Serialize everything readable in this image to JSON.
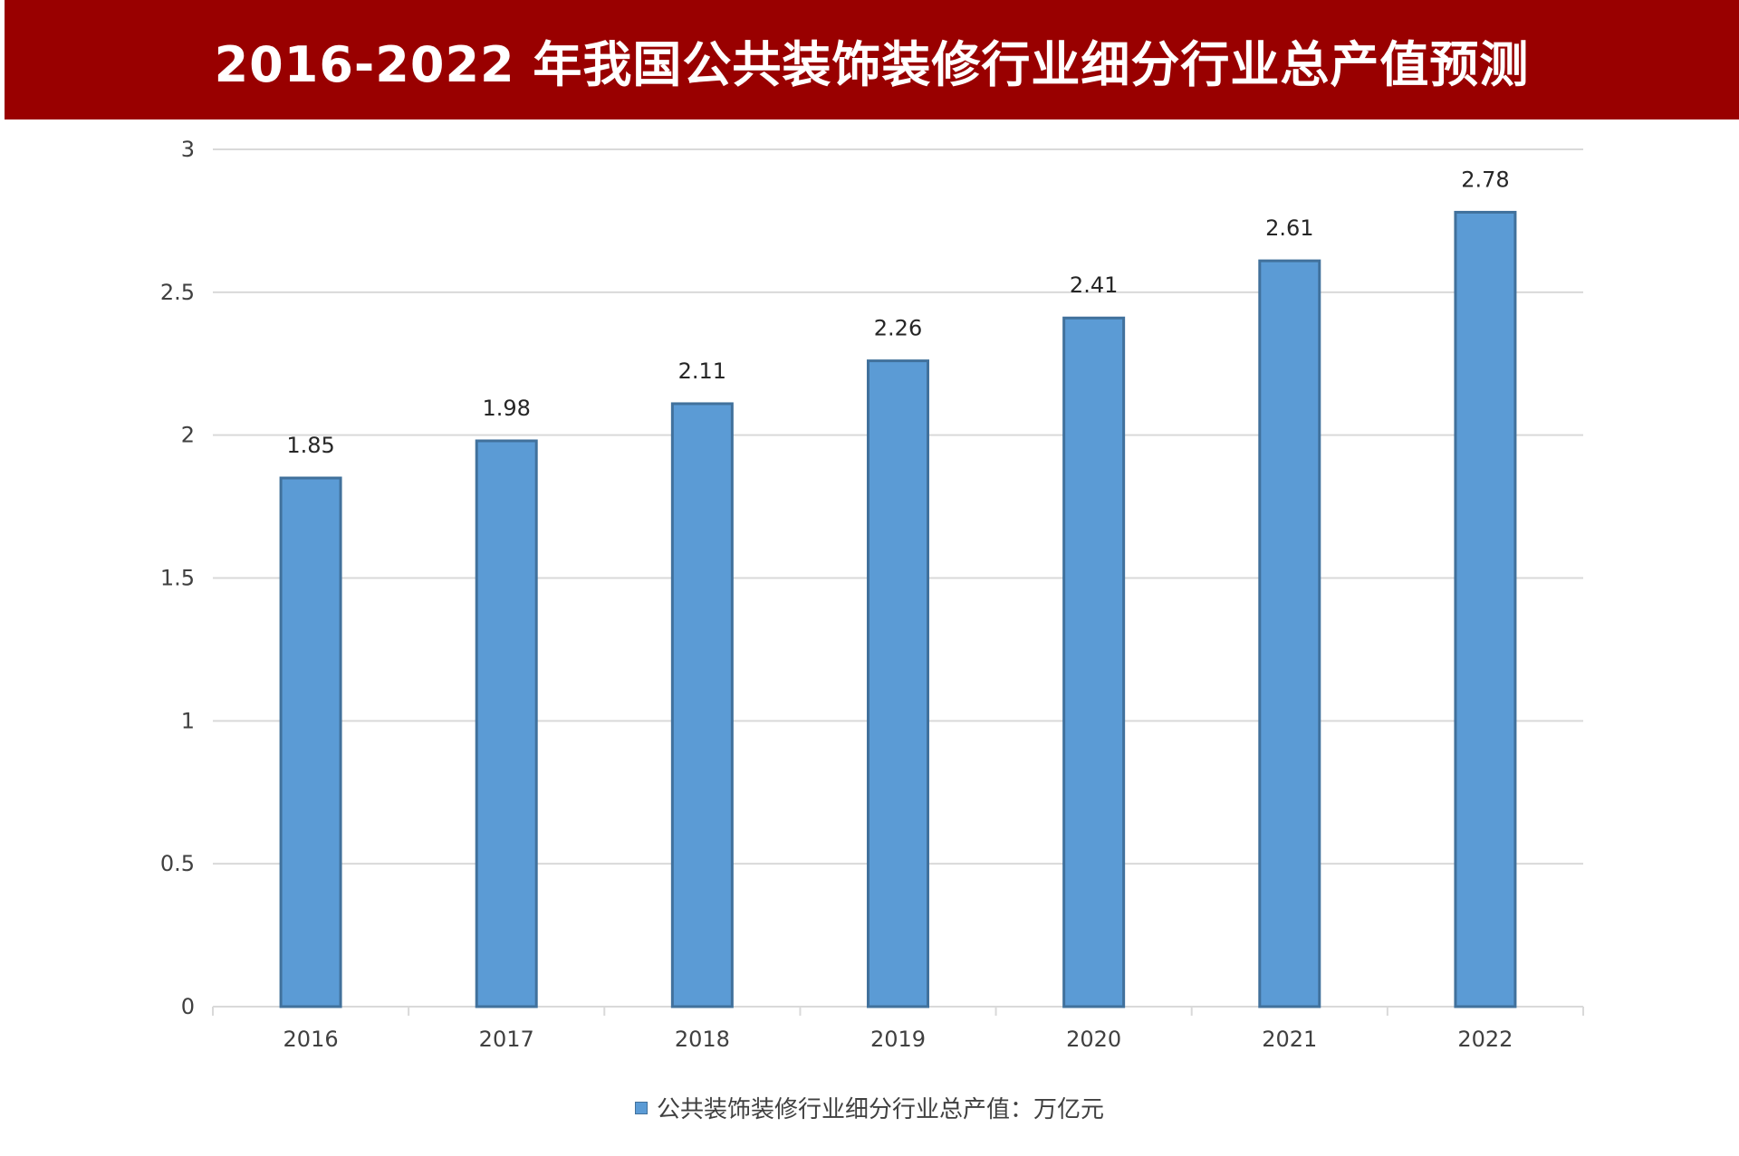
{
  "title": "2016-2022 年我国公共装饰装修行业细分行业总产值预测",
  "colors": {
    "title_bar": "#990000",
    "bar_fill": "#5b9bd5",
    "bar_stroke": "#41719c",
    "grid": "#d9d9d9"
  },
  "chart_data": {
    "type": "bar",
    "title": "2016-2022 年我国公共装饰装修行业细分行业总产值预测",
    "xlabel": "",
    "ylabel": "",
    "categories": [
      "2016",
      "2017",
      "2018",
      "2019",
      "2020",
      "2021",
      "2022"
    ],
    "series": [
      {
        "name": "公共装饰装修行业细分行业总产值：万亿元",
        "values": [
          1.85,
          1.98,
          2.11,
          2.26,
          2.41,
          2.61,
          2.78
        ]
      }
    ],
    "data_labels": [
      "1.85",
      "1.98",
      "2.11",
      "2.26",
      "2.41",
      "2.61",
      "2.78"
    ],
    "ylim": [
      0,
      3
    ],
    "yticks": [
      0,
      0.5,
      1,
      1.5,
      2,
      2.5,
      3
    ],
    "ytick_labels": [
      "0",
      "0.5",
      "1",
      "1.5",
      "2",
      "2.5",
      "3"
    ],
    "grid": true,
    "legend_position": "bottom"
  }
}
